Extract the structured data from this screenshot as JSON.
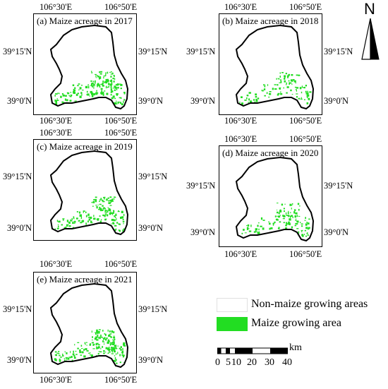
{
  "panels": [
    {
      "title": "(a)  Maize acreage in 2017",
      "lon_left": "106°30'E",
      "lon_right": "106°50'E",
      "lat_top": "39°15'N",
      "lat_bottom": "39°0'N"
    },
    {
      "title": "(b)  Maize acreage in 2018",
      "lon_left": "106°30'E",
      "lon_right": "106°50'E",
      "lat_top": "39°15'N",
      "lat_bottom": "39°0'N"
    },
    {
      "title": "(c)  Maize acreage in 2019",
      "lon_left": "106°30'E",
      "lon_right": "106°50'E",
      "lat_top": "39°15'N",
      "lat_bottom": "39°0'N"
    },
    {
      "title": "(d)  Maize acreage in 2020",
      "lon_left": "106°30'E",
      "lon_right": "106°50'E",
      "lat_top": "39°15'N",
      "lat_bottom": "39°0'N"
    },
    {
      "title": "(e)  Maize acreage in 2021",
      "lon_left": "106°30'E",
      "lon_right": "106°50'E",
      "lat_top": "39°15'N",
      "lat_bottom": "39°0'N"
    }
  ],
  "north_arrow": {
    "label": "N",
    "icon": "north-arrow-icon"
  },
  "legend": {
    "items": [
      {
        "label": "Non-maize growing areas",
        "color": "#ffffff"
      },
      {
        "label": "Maize growing area",
        "color": "#22dd22"
      }
    ]
  },
  "scale_bar": {
    "unit": "km",
    "ticks": [
      "0",
      "5",
      "10",
      "20",
      "30",
      "40"
    ]
  }
}
